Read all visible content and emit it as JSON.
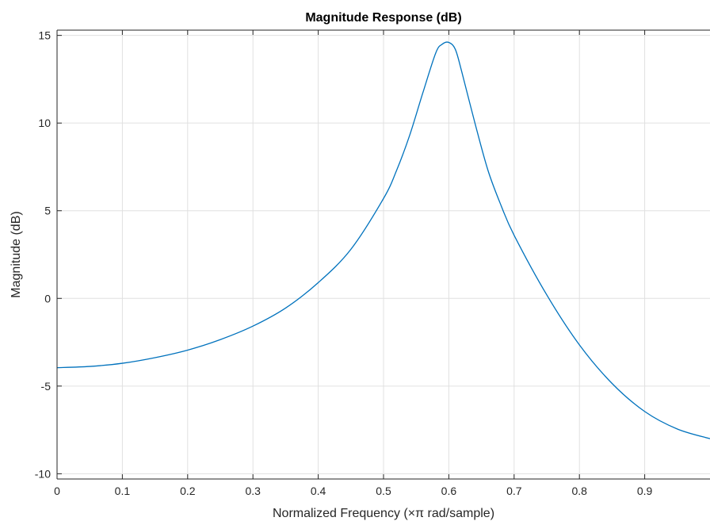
{
  "chart_data": {
    "type": "line",
    "title": "Magnitude Response (dB)",
    "xlabel": "Normalized Frequency (×π rad/sample)",
    "ylabel": "Magnitude (dB)",
    "xlim": [
      0,
      1
    ],
    "ylim": [
      -10.3,
      15.3
    ],
    "xticks": [
      0,
      0.1,
      0.2,
      0.3,
      0.4,
      0.5,
      0.6,
      0.7,
      0.8,
      0.9
    ],
    "xtick_labels": [
      "0",
      "0.1",
      "0.2",
      "0.3",
      "0.4",
      "0.5",
      "0.6",
      "0.7",
      "0.8",
      "0.9"
    ],
    "yticks": [
      -10,
      -5,
      0,
      5,
      10,
      15
    ],
    "ytick_labels": [
      "-10",
      "-5",
      "0",
      "5",
      "10",
      "15"
    ],
    "grid": true,
    "legend": "none",
    "series": [
      {
        "color": "#0072bd",
        "x": [
          0,
          0.05,
          0.1,
          0.15,
          0.2,
          0.25,
          0.3,
          0.35,
          0.4,
          0.45,
          0.5,
          0.52,
          0.54,
          0.56,
          0.58,
          0.59,
          0.6,
          0.61,
          0.62,
          0.64,
          0.66,
          0.68,
          0.7,
          0.75,
          0.8,
          0.85,
          0.9,
          0.95,
          1.0
        ],
        "y": [
          -3.95,
          -3.88,
          -3.7,
          -3.38,
          -2.95,
          -2.35,
          -1.58,
          -0.55,
          0.9,
          2.8,
          5.7,
          7.3,
          9.3,
          11.7,
          14.0,
          14.5,
          14.6,
          14.2,
          12.9,
          10.0,
          7.3,
          5.3,
          3.6,
          0.2,
          -2.65,
          -4.85,
          -6.45,
          -7.45,
          -8.0
        ]
      }
    ]
  }
}
